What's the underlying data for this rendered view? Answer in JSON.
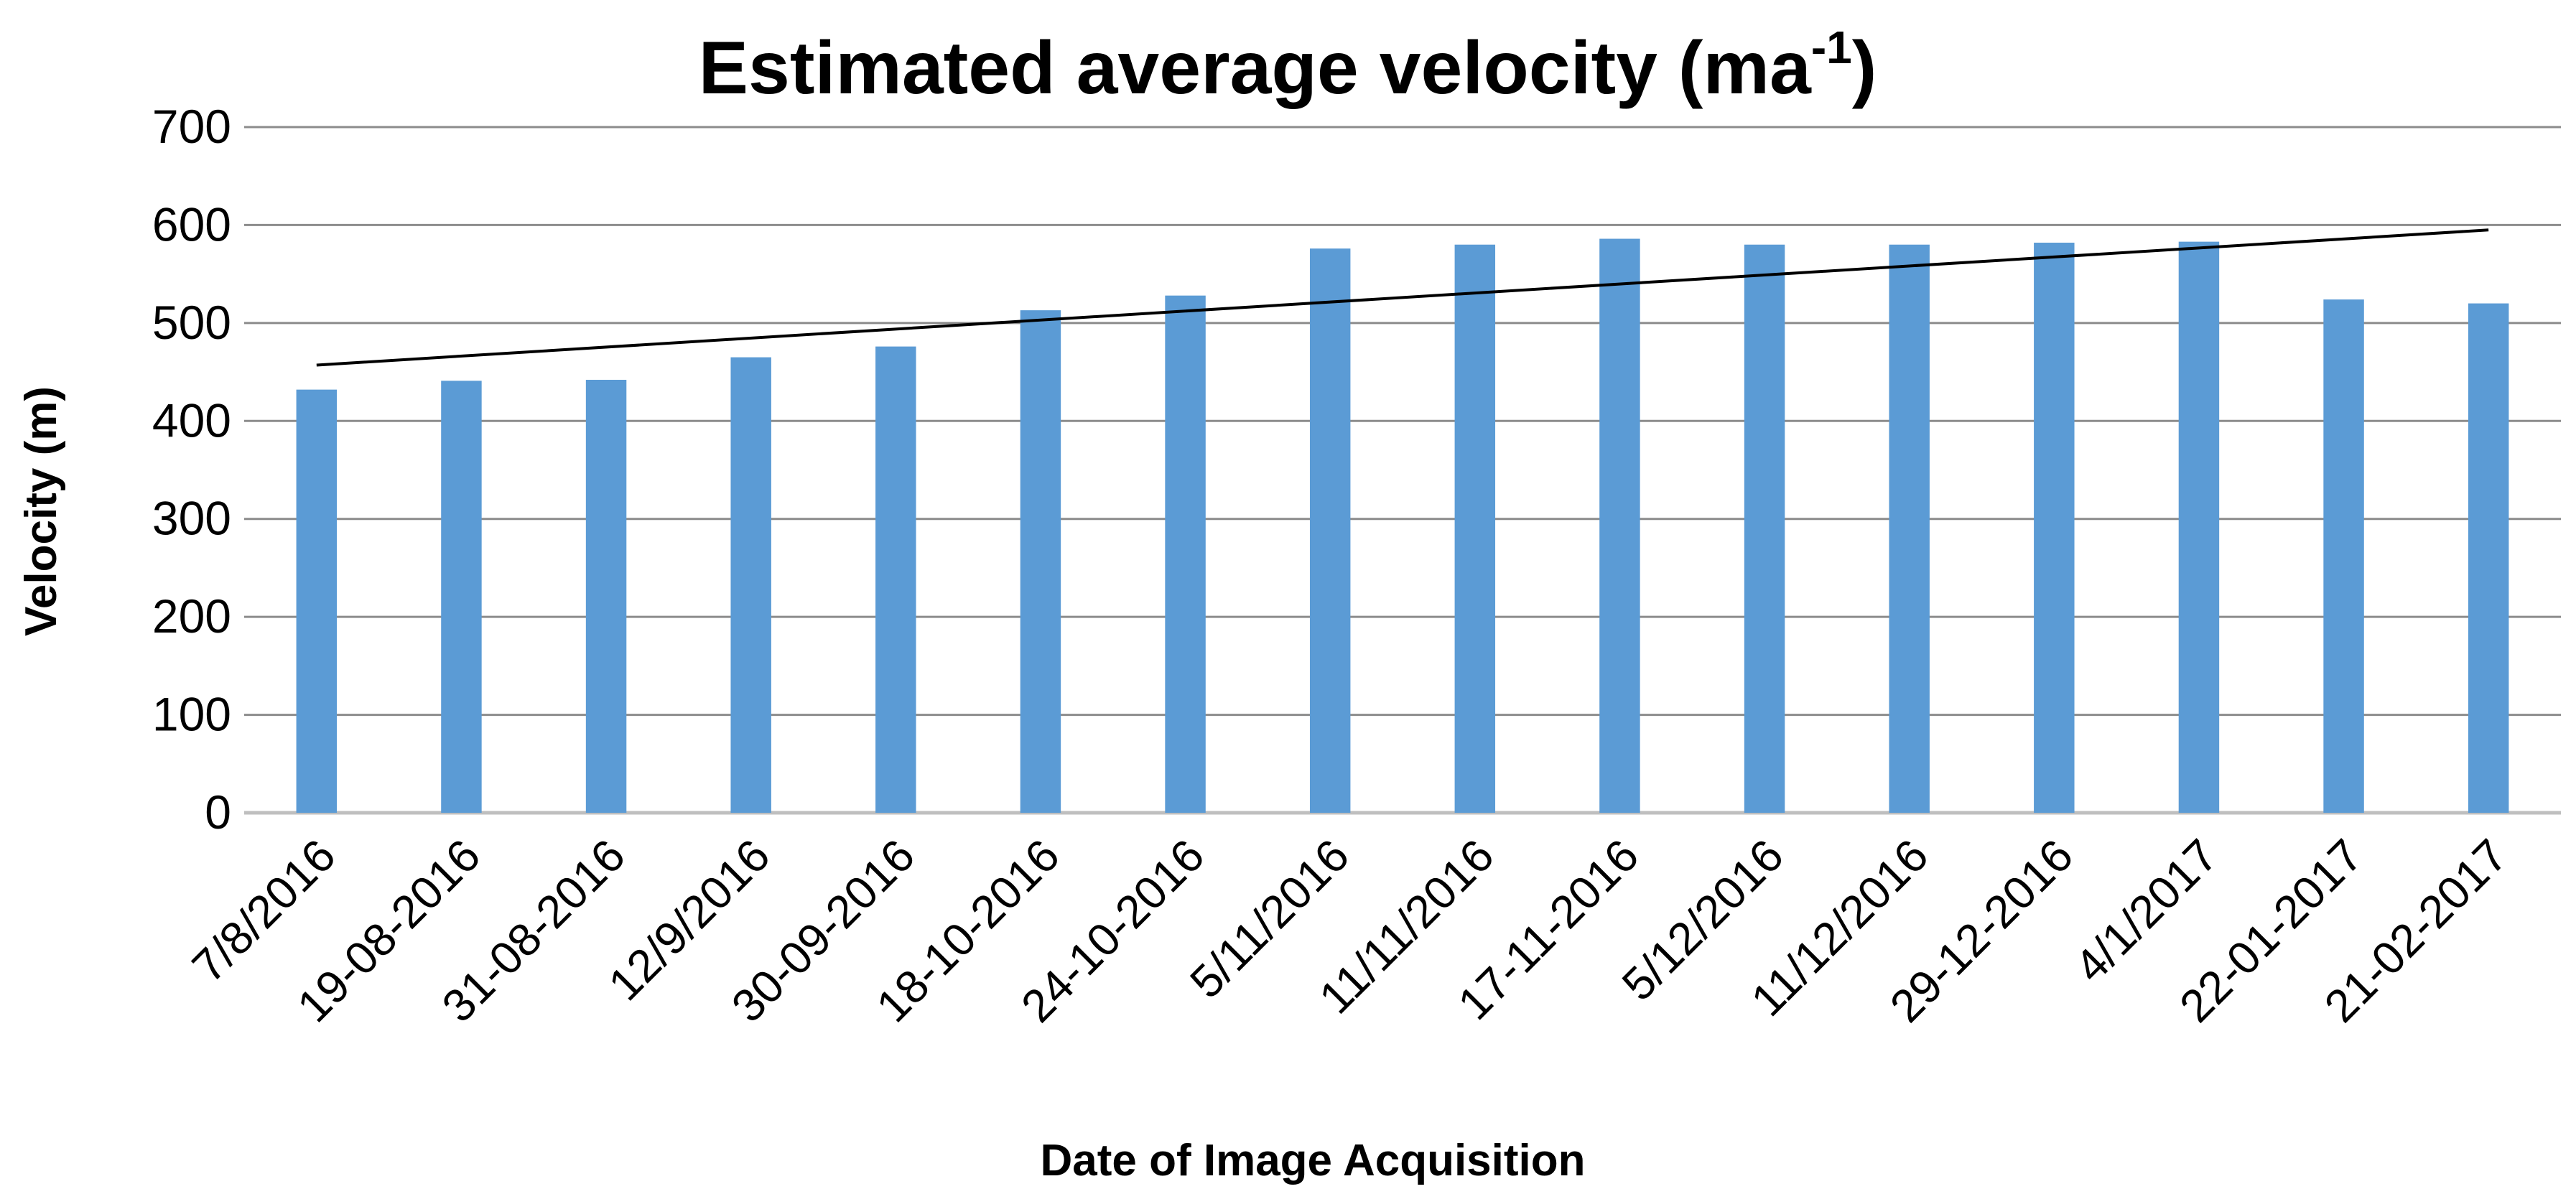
{
  "chart_data": {
    "type": "bar",
    "title": "Estimated average velocity (ma",
    "title_superscript": "-1",
    "title_suffix": ")",
    "xlabel": "Date of Image Acquisition",
    "ylabel": "Velocity (m)",
    "ylim": [
      0,
      700
    ],
    "yticks": [
      0,
      100,
      200,
      300,
      400,
      500,
      600,
      700
    ],
    "grid": true,
    "categories": [
      "7/8/2016",
      "19-08-2016",
      "31-08-2016",
      "12/9/2016",
      "30-09-2016",
      "18-10-2016",
      "24-10-2016",
      "5/11/2016",
      "11/11/2016",
      "17-11-2016",
      "5/12/2016",
      "11/12/2016",
      "29-12-2016",
      "4/1/2017",
      "22-01-2017",
      "21-02-2017"
    ],
    "series": [
      {
        "name": "Estimated average velocity",
        "values": [
          432,
          441,
          442,
          465,
          476,
          513,
          528,
          576,
          580,
          586,
          580,
          580,
          582,
          583,
          524,
          520
        ]
      }
    ],
    "trendline": {
      "type": "linear",
      "start": {
        "category": "7/8/2016",
        "value": 457
      },
      "end": {
        "category": "21-02-2017",
        "value": 595
      }
    },
    "colors": {
      "bar": "#5B9BD5",
      "grid": "#8C8C8C",
      "trendline": "#000000",
      "text": "#000000"
    }
  }
}
